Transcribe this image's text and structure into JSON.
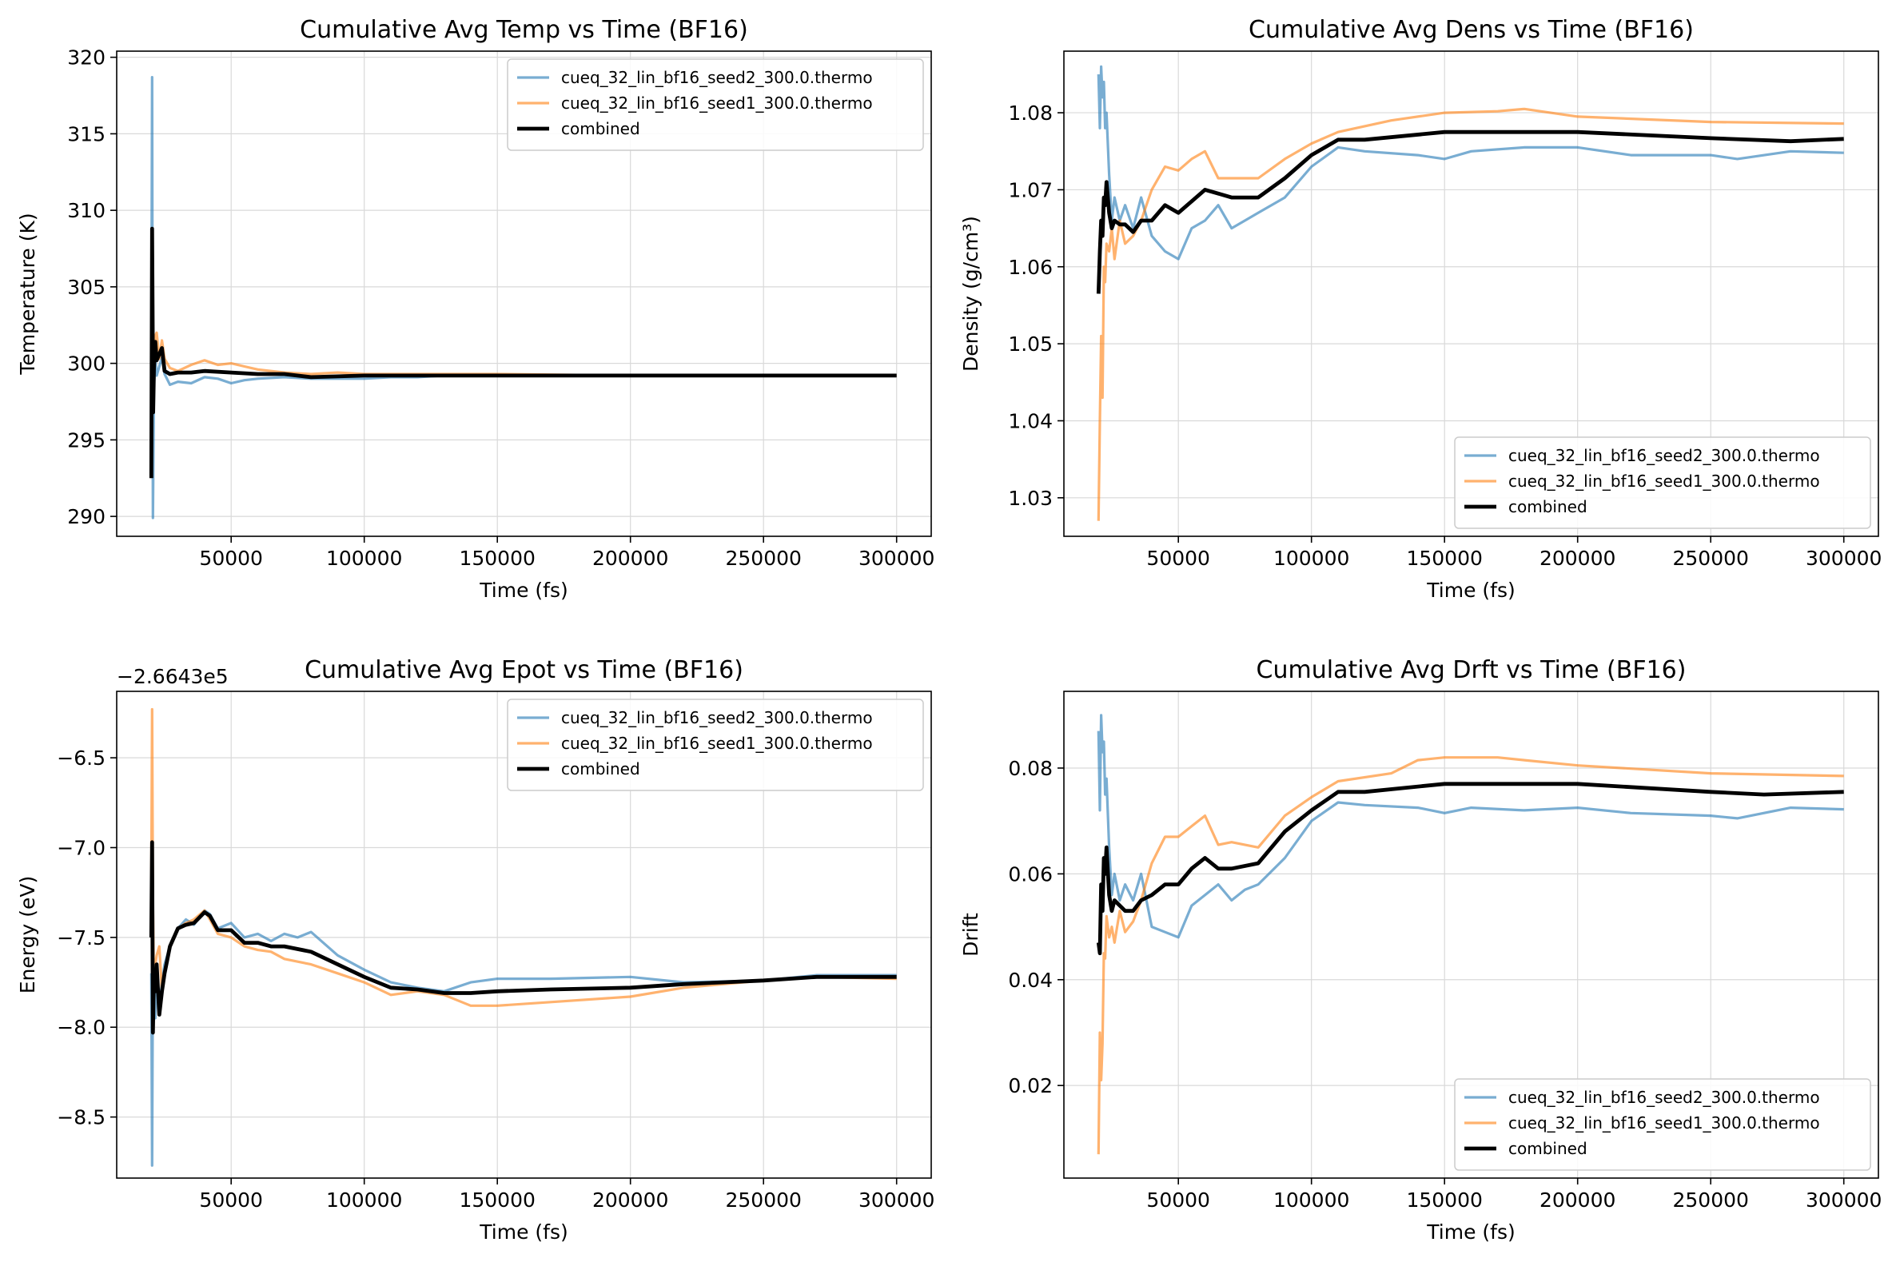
{
  "figure": {
    "background": "#ffffff"
  },
  "colors": {
    "seed2": "#1f77b4",
    "seed1": "#ff7f0e",
    "combined": "#000000",
    "grid": "#d9d9d9"
  },
  "chart_data": [
    {
      "type": "line",
      "title": "Cumulative Avg Temp vs Time (BF16)",
      "xlabel": "Time (fs)",
      "ylabel": "Temperature (K)",
      "xlim": [
        7000,
        313000
      ],
      "ylim": [
        288.7,
        320.4
      ],
      "xticks": [
        50000,
        100000,
        150000,
        200000,
        250000,
        300000
      ],
      "xtick_labels": [
        "50000",
        "100000",
        "150000",
        "200000",
        "250000",
        "300000"
      ],
      "yticks": [
        290,
        295,
        300,
        305,
        310,
        315,
        320
      ],
      "ytick_labels": [
        "290",
        "295",
        "300",
        "305",
        "310",
        "315",
        "320"
      ],
      "offset_text": "",
      "grid": true,
      "legend_position": "upper right",
      "series": [
        {
          "name": "cueq_32_lin_bf16_seed2_300.0.thermo",
          "x": [
            20000,
            20300,
            20600,
            21000,
            21500,
            22000,
            23000,
            24000,
            25000,
            27000,
            30000,
            35000,
            40000,
            45000,
            50000,
            55000,
            60000,
            70000,
            80000,
            90000,
            100000,
            110000,
            120000,
            130000,
            150000,
            170000,
            200000,
            250000,
            300000
          ],
          "y": [
            300,
            318.7,
            289.9,
            298.5,
            300.3,
            299.2,
            299.8,
            300.4,
            299.3,
            298.6,
            298.8,
            298.7,
            299.1,
            299.0,
            298.7,
            298.9,
            299.0,
            299.1,
            299.0,
            299.0,
            299.0,
            299.1,
            299.1,
            299.2,
            299.2,
            299.2,
            299.2,
            299.2,
            299.2
          ]
        },
        {
          "name": "cueq_32_lin_bf16_seed1_300.0.thermo",
          "x": [
            20000,
            20500,
            21000,
            21500,
            22000,
            23000,
            24000,
            25000,
            27000,
            30000,
            35000,
            40000,
            45000,
            50000,
            55000,
            60000,
            70000,
            80000,
            90000,
            100000,
            120000,
            150000,
            200000,
            250000,
            300000
          ],
          "y": [
            300.8,
            299.5,
            300.6,
            301.8,
            302.0,
            300.3,
            301.5,
            300.3,
            299.7,
            299.5,
            299.9,
            300.2,
            299.9,
            300.0,
            299.8,
            299.6,
            299.4,
            299.3,
            299.4,
            299.3,
            299.3,
            299.3,
            299.2,
            299.2,
            299.2
          ]
        },
        {
          "name": "combined",
          "x": [
            20000,
            20300,
            20700,
            21000,
            21500,
            22000,
            23000,
            24000,
            25000,
            27000,
            30000,
            35000,
            40000,
            50000,
            60000,
            70000,
            80000,
            100000,
            130000,
            150000,
            200000,
            250000,
            300000
          ],
          "y": [
            292.5,
            308.8,
            296.8,
            299.7,
            301.4,
            300.2,
            300.6,
            301.0,
            299.5,
            299.3,
            299.4,
            299.4,
            299.5,
            299.4,
            299.3,
            299.3,
            299.1,
            299.2,
            299.2,
            299.2,
            299.2,
            299.2,
            299.2
          ]
        }
      ]
    },
    {
      "type": "line",
      "title": "Cumulative Avg Dens vs Time (BF16)",
      "xlabel": "Time (fs)",
      "ylabel": "Density (g/cm³)",
      "xlim": [
        7000,
        313000
      ],
      "ylim": [
        1.025,
        1.088
      ],
      "xticks": [
        50000,
        100000,
        150000,
        200000,
        250000,
        300000
      ],
      "xtick_labels": [
        "50000",
        "100000",
        "150000",
        "200000",
        "250000",
        "300000"
      ],
      "yticks": [
        1.03,
        1.04,
        1.05,
        1.06,
        1.07,
        1.08
      ],
      "ytick_labels": [
        "1.03",
        "1.04",
        "1.05",
        "1.06",
        "1.07",
        "1.08"
      ],
      "offset_text": "",
      "grid": true,
      "legend_position": "lower right",
      "series": [
        {
          "name": "cueq_32_lin_bf16_seed2_300.0.thermo",
          "x": [
            20000,
            20500,
            21000,
            21500,
            22000,
            22500,
            23000,
            24000,
            25000,
            26000,
            28000,
            30000,
            33000,
            36000,
            40000,
            45000,
            50000,
            55000,
            60000,
            65000,
            70000,
            75000,
            80000,
            90000,
            100000,
            110000,
            120000,
            140000,
            150000,
            160000,
            180000,
            200000,
            220000,
            250000,
            260000,
            280000,
            300000
          ],
          "y": [
            1.085,
            1.078,
            1.086,
            1.082,
            1.084,
            1.078,
            1.08,
            1.072,
            1.066,
            1.069,
            1.066,
            1.068,
            1.065,
            1.069,
            1.064,
            1.062,
            1.061,
            1.065,
            1.066,
            1.068,
            1.065,
            1.066,
            1.067,
            1.069,
            1.073,
            1.0755,
            1.075,
            1.0745,
            1.074,
            1.075,
            1.0755,
            1.0755,
            1.0745,
            1.0745,
            1.074,
            1.075,
            1.0748
          ]
        },
        {
          "name": "cueq_32_lin_bf16_seed1_300.0.thermo",
          "x": [
            20000,
            20500,
            21000,
            21500,
            22000,
            22500,
            23000,
            24000,
            25000,
            26000,
            28000,
            30000,
            33000,
            36000,
            40000,
            45000,
            50000,
            55000,
            60000,
            65000,
            70000,
            80000,
            90000,
            100000,
            110000,
            130000,
            150000,
            170000,
            180000,
            200000,
            250000,
            300000
          ],
          "y": [
            1.027,
            1.04,
            1.051,
            1.043,
            1.06,
            1.058,
            1.063,
            1.062,
            1.065,
            1.061,
            1.066,
            1.063,
            1.064,
            1.066,
            1.07,
            1.073,
            1.0725,
            1.074,
            1.075,
            1.0715,
            1.0715,
            1.0715,
            1.074,
            1.076,
            1.0775,
            1.079,
            1.08,
            1.0802,
            1.0805,
            1.0795,
            1.0788,
            1.0786
          ]
        },
        {
          "name": "combined",
          "x": [
            20000,
            20500,
            21000,
            21500,
            22000,
            22500,
            23000,
            24000,
            25000,
            26000,
            28000,
            30000,
            33000,
            36000,
            40000,
            45000,
            50000,
            55000,
            60000,
            65000,
            70000,
            80000,
            90000,
            100000,
            110000,
            120000,
            150000,
            200000,
            250000,
            280000,
            300000
          ],
          "y": [
            1.0565,
            1.062,
            1.066,
            1.064,
            1.069,
            1.068,
            1.071,
            1.067,
            1.065,
            1.066,
            1.0655,
            1.0655,
            1.0645,
            1.066,
            1.066,
            1.068,
            1.067,
            1.0685,
            1.07,
            1.0695,
            1.069,
            1.069,
            1.0715,
            1.0745,
            1.0765,
            1.0765,
            1.0775,
            1.0775,
            1.0767,
            1.0763,
            1.0766
          ]
        }
      ]
    },
    {
      "type": "line",
      "title": "Cumulative Avg Epot vs Time (BF16)",
      "xlabel": "Time (fs)",
      "ylabel": "Energy (eV)",
      "xlim": [
        7000,
        313000
      ],
      "ylim": [
        -8.84,
        -6.13
      ],
      "xticks": [
        50000,
        100000,
        150000,
        200000,
        250000,
        300000
      ],
      "xtick_labels": [
        "50000",
        "100000",
        "150000",
        "200000",
        "250000",
        "300000"
      ],
      "yticks": [
        -8.5,
        -8.0,
        -7.5,
        -7.0,
        -6.5
      ],
      "ytick_labels": [
        "−8.5",
        "−8.0",
        "−7.5",
        "−7.0",
        "−6.5"
      ],
      "offset_text": "−2.6643e5",
      "grid": true,
      "legend_position": "upper right",
      "series": [
        {
          "name": "cueq_32_lin_bf16_seed2_300.0.thermo",
          "x": [
            20000,
            20300,
            20600,
            21000,
            21500,
            22000,
            23000,
            24000,
            25000,
            27000,
            30000,
            33000,
            36000,
            40000,
            42000,
            45000,
            50000,
            55000,
            60000,
            65000,
            70000,
            75000,
            80000,
            90000,
            100000,
            110000,
            120000,
            130000,
            140000,
            150000,
            170000,
            200000,
            220000,
            250000,
            270000,
            300000
          ],
          "y": [
            -7.7,
            -8.77,
            -7.6,
            -7.75,
            -7.95,
            -7.7,
            -7.9,
            -7.75,
            -7.65,
            -7.55,
            -7.45,
            -7.4,
            -7.43,
            -7.35,
            -7.37,
            -7.45,
            -7.42,
            -7.5,
            -7.48,
            -7.52,
            -7.48,
            -7.5,
            -7.47,
            -7.6,
            -7.68,
            -7.75,
            -7.78,
            -7.8,
            -7.75,
            -7.73,
            -7.73,
            -7.72,
            -7.75,
            -7.74,
            -7.71,
            -7.71
          ]
        },
        {
          "name": "cueq_32_lin_bf16_seed1_300.0.thermo",
          "x": [
            20000,
            20300,
            20600,
            21000,
            21500,
            22000,
            23000,
            24000,
            25000,
            27000,
            30000,
            33000,
            36000,
            40000,
            42000,
            45000,
            50000,
            55000,
            60000,
            65000,
            70000,
            80000,
            90000,
            100000,
            110000,
            120000,
            130000,
            140000,
            150000,
            170000,
            200000,
            220000,
            250000,
            270000,
            300000
          ],
          "y": [
            -7.2,
            -6.23,
            -7.3,
            -7.8,
            -7.65,
            -7.6,
            -7.55,
            -7.8,
            -7.7,
            -7.55,
            -7.45,
            -7.42,
            -7.4,
            -7.35,
            -7.4,
            -7.48,
            -7.5,
            -7.55,
            -7.57,
            -7.58,
            -7.62,
            -7.65,
            -7.7,
            -7.75,
            -7.82,
            -7.8,
            -7.82,
            -7.88,
            -7.88,
            -7.86,
            -7.83,
            -7.78,
            -7.74,
            -7.72,
            -7.73
          ]
        },
        {
          "name": "combined",
          "x": [
            20000,
            20300,
            20600,
            21000,
            21500,
            22000,
            23000,
            24000,
            25000,
            27000,
            30000,
            33000,
            36000,
            40000,
            42000,
            45000,
            50000,
            55000,
            60000,
            65000,
            70000,
            80000,
            90000,
            100000,
            110000,
            120000,
            130000,
            140000,
            150000,
            170000,
            200000,
            220000,
            250000,
            270000,
            300000
          ],
          "y": [
            -7.5,
            -6.97,
            -8.03,
            -7.7,
            -7.8,
            -7.65,
            -7.93,
            -7.8,
            -7.7,
            -7.55,
            -7.45,
            -7.43,
            -7.42,
            -7.36,
            -7.38,
            -7.46,
            -7.46,
            -7.53,
            -7.53,
            -7.55,
            -7.55,
            -7.58,
            -7.65,
            -7.72,
            -7.78,
            -7.79,
            -7.81,
            -7.81,
            -7.8,
            -7.79,
            -7.78,
            -7.76,
            -7.74,
            -7.72,
            -7.72
          ]
        }
      ]
    },
    {
      "type": "line",
      "title": "Cumulative Avg Drft vs Time (BF16)",
      "xlabel": "Time (fs)",
      "ylabel": "Drift",
      "xlim": [
        7000,
        313000
      ],
      "ylim": [
        0.0025,
        0.0945
      ],
      "xticks": [
        50000,
        100000,
        150000,
        200000,
        250000,
        300000
      ],
      "xtick_labels": [
        "50000",
        "100000",
        "150000",
        "200000",
        "250000",
        "300000"
      ],
      "yticks": [
        0.02,
        0.04,
        0.06,
        0.08
      ],
      "ytick_labels": [
        "0.02",
        "0.04",
        "0.06",
        "0.08"
      ],
      "offset_text": "",
      "grid": true,
      "legend_position": "lower right",
      "series": [
        {
          "name": "cueq_32_lin_bf16_seed2_300.0.thermo",
          "x": [
            20000,
            20500,
            21000,
            21500,
            22000,
            22500,
            23000,
            24000,
            25000,
            26000,
            28000,
            30000,
            33000,
            36000,
            40000,
            45000,
            50000,
            55000,
            60000,
            65000,
            70000,
            75000,
            80000,
            90000,
            100000,
            110000,
            120000,
            140000,
            150000,
            160000,
            180000,
            200000,
            220000,
            250000,
            260000,
            280000,
            300000
          ],
          "y": [
            0.087,
            0.072,
            0.09,
            0.083,
            0.085,
            0.075,
            0.078,
            0.065,
            0.056,
            0.06,
            0.055,
            0.058,
            0.055,
            0.06,
            0.05,
            0.049,
            0.048,
            0.054,
            0.056,
            0.058,
            0.055,
            0.057,
            0.058,
            0.063,
            0.07,
            0.0735,
            0.073,
            0.0725,
            0.0715,
            0.0725,
            0.072,
            0.0725,
            0.0715,
            0.071,
            0.0705,
            0.0725,
            0.0722
          ]
        },
        {
          "name": "cueq_32_lin_bf16_seed1_300.0.thermo",
          "x": [
            20000,
            20500,
            21000,
            21500,
            22000,
            22500,
            23000,
            24000,
            25000,
            26000,
            28000,
            30000,
            33000,
            36000,
            40000,
            45000,
            50000,
            55000,
            60000,
            65000,
            70000,
            80000,
            90000,
            100000,
            110000,
            130000,
            140000,
            150000,
            170000,
            180000,
            200000,
            250000,
            300000
          ],
          "y": [
            0.007,
            0.03,
            0.021,
            0.028,
            0.045,
            0.044,
            0.052,
            0.048,
            0.05,
            0.047,
            0.053,
            0.049,
            0.051,
            0.055,
            0.062,
            0.067,
            0.067,
            0.069,
            0.071,
            0.0655,
            0.066,
            0.065,
            0.071,
            0.0745,
            0.0775,
            0.079,
            0.0815,
            0.082,
            0.082,
            0.0815,
            0.0805,
            0.079,
            0.0785
          ]
        },
        {
          "name": "combined",
          "x": [
            20000,
            20500,
            21000,
            21500,
            22000,
            22500,
            23000,
            24000,
            25000,
            26000,
            28000,
            30000,
            33000,
            36000,
            40000,
            45000,
            50000,
            55000,
            60000,
            65000,
            70000,
            80000,
            90000,
            100000,
            110000,
            120000,
            150000,
            200000,
            250000,
            270000,
            300000
          ],
          "y": [
            0.047,
            0.045,
            0.058,
            0.053,
            0.063,
            0.06,
            0.065,
            0.056,
            0.053,
            0.055,
            0.054,
            0.053,
            0.053,
            0.055,
            0.056,
            0.058,
            0.058,
            0.061,
            0.063,
            0.061,
            0.061,
            0.062,
            0.068,
            0.072,
            0.0755,
            0.0755,
            0.077,
            0.077,
            0.0755,
            0.075,
            0.0755
          ]
        }
      ]
    }
  ]
}
